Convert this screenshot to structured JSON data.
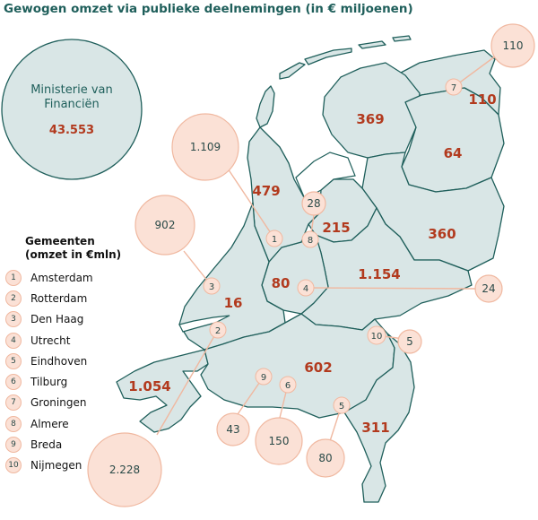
{
  "title": "Gewogen omzet via publieke deelnemingen (in € miljoenen)",
  "ministry": {
    "label_line1": "Ministerie van",
    "label_line2": "Financiën",
    "value": "43.553"
  },
  "provinces": {
    "groningen": "110",
    "friesland": "369",
    "drenthe": "64",
    "overijssel": "360",
    "flevoland": "215",
    "gelderland": "1.154",
    "utrecht": "80",
    "noord_holland": "479",
    "zuid_holland": "16",
    "zeeland": "1.054",
    "noord_brabant": "602",
    "limburg": "311"
  },
  "bubbles": {
    "groningen": "110",
    "amsterdam": "1.109",
    "almere": "28",
    "den_haag": "902",
    "utrecht": "24",
    "nijmegen": "5",
    "rotterdam": "2.228",
    "breda": "43",
    "tilburg": "150",
    "eindhoven": "80"
  },
  "markers": {
    "m1": "1",
    "m2": "2",
    "m3": "3",
    "m4": "4",
    "m5": "5",
    "m6": "6",
    "m7": "7",
    "m8": "8",
    "m9": "9",
    "m10": "10"
  },
  "legend": {
    "title_line1": "Gemeenten",
    "title_line2": "(omzet in €mln)",
    "items": [
      {
        "num": "1",
        "name": "Amsterdam"
      },
      {
        "num": "2",
        "name": "Rotterdam"
      },
      {
        "num": "3",
        "name": "Den Haag"
      },
      {
        "num": "4",
        "name": "Utrecht"
      },
      {
        "num": "5",
        "name": "Eindhoven"
      },
      {
        "num": "6",
        "name": "Tilburg"
      },
      {
        "num": "7",
        "name": "Groningen"
      },
      {
        "num": "8",
        "name": "Almere"
      },
      {
        "num": "9",
        "name": "Breda"
      },
      {
        "num": "10",
        "name": "Nijmegen"
      }
    ]
  },
  "colors": {
    "land": "#d9e6e6",
    "border": "#1f5f5b",
    "value_red": "#b23a1e",
    "bubble": "#fbe1d6",
    "bubble_edge": "#f0b8a0"
  }
}
